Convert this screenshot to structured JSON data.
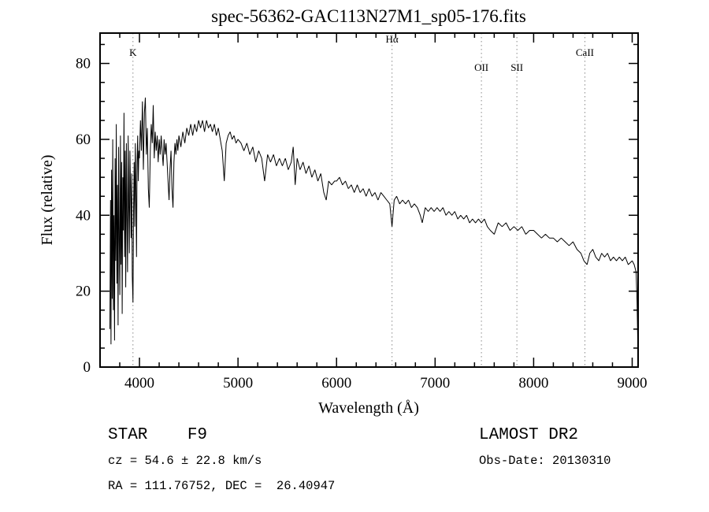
{
  "chart_data": {
    "type": "line",
    "title": "spec-56362-GAC113N27M1_sp05-176.fits",
    "xlabel": "Wavelength (Å)",
    "ylabel": "Flux (relative)",
    "xlim": [
      3600,
      9060
    ],
    "ylim": [
      0,
      88
    ],
    "x_ticks": [
      4000,
      5000,
      6000,
      7000,
      8000,
      9000
    ],
    "y_ticks": [
      0,
      20,
      40,
      60,
      80
    ],
    "x_minor_step": 200,
    "y_minor_step": 5,
    "grid": false,
    "legend": "none",
    "line_color": "#000000",
    "ref_line_color": "#8a8a8a",
    "spectral_lines": [
      {
        "label": "K",
        "wavelength": 3934,
        "label_y": 82
      },
      {
        "label": "Hα",
        "wavelength": 6563,
        "label_y": 85.5
      },
      {
        "label": "OII",
        "wavelength": 7470,
        "label_y": 78
      },
      {
        "label": "SII",
        "wavelength": 7830,
        "label_y": 78
      },
      {
        "label": "CaII",
        "wavelength": 8520,
        "label_y": 82
      }
    ],
    "points": [
      [
        3700,
        10
      ],
      [
        3706,
        44
      ],
      [
        3711,
        6
      ],
      [
        3717,
        52
      ],
      [
        3723,
        18
      ],
      [
        3729,
        60
      ],
      [
        3735,
        15
      ],
      [
        3741,
        40
      ],
      [
        3747,
        7
      ],
      [
        3753,
        55
      ],
      [
        3759,
        28
      ],
      [
        3765,
        64
      ],
      [
        3771,
        22
      ],
      [
        3777,
        48
      ],
      [
        3783,
        11
      ],
      [
        3789,
        58
      ],
      [
        3795,
        33
      ],
      [
        3801,
        19
      ],
      [
        3807,
        61
      ],
      [
        3813,
        27
      ],
      [
        3819,
        54
      ],
      [
        3825,
        14
      ],
      [
        3831,
        50
      ],
      [
        3837,
        36
      ],
      [
        3843,
        67
      ],
      [
        3849,
        29
      ],
      [
        3855,
        57
      ],
      [
        3861,
        21
      ],
      [
        3867,
        59
      ],
      [
        3873,
        39
      ],
      [
        3879,
        25
      ],
      [
        3885,
        61
      ],
      [
        3891,
        44
      ],
      [
        3897,
        30
      ],
      [
        3903,
        57
      ],
      [
        3909,
        47
      ],
      [
        3915,
        34
      ],
      [
        3921,
        51
      ],
      [
        3927,
        24
      ],
      [
        3934,
        17
      ],
      [
        3940,
        41
      ],
      [
        3946,
        54
      ],
      [
        3952,
        37
      ],
      [
        3958,
        59
      ],
      [
        3964,
        47
      ],
      [
        3970,
        29
      ],
      [
        3976,
        54
      ],
      [
        3982,
        61
      ],
      [
        3988,
        49
      ],
      [
        3994,
        57
      ],
      [
        4000,
        55
      ],
      [
        4010,
        65
      ],
      [
        4020,
        57
      ],
      [
        4030,
        70
      ],
      [
        4040,
        52
      ],
      [
        4050,
        67
      ],
      [
        4060,
        71
      ],
      [
        4070,
        56
      ],
      [
        4080,
        63
      ],
      [
        4090,
        47
      ],
      [
        4100,
        42
      ],
      [
        4110,
        57
      ],
      [
        4120,
        64
      ],
      [
        4130,
        59
      ],
      [
        4140,
        69
      ],
      [
        4150,
        55
      ],
      [
        4160,
        62
      ],
      [
        4170,
        57
      ],
      [
        4180,
        61
      ],
      [
        4190,
        54
      ],
      [
        4200,
        60
      ],
      [
        4210,
        56
      ],
      [
        4220,
        61
      ],
      [
        4230,
        57
      ],
      [
        4240,
        53
      ],
      [
        4250,
        60
      ],
      [
        4260,
        56
      ],
      [
        4270,
        59
      ],
      [
        4280,
        54
      ],
      [
        4290,
        49
      ],
      [
        4300,
        44
      ],
      [
        4310,
        52
      ],
      [
        4320,
        57
      ],
      [
        4330,
        47
      ],
      [
        4340,
        42
      ],
      [
        4350,
        54
      ],
      [
        4360,
        59
      ],
      [
        4370,
        56
      ],
      [
        4380,
        60
      ],
      [
        4390,
        57
      ],
      [
        4400,
        61
      ],
      [
        4420,
        58
      ],
      [
        4440,
        62
      ],
      [
        4460,
        59
      ],
      [
        4480,
        63
      ],
      [
        4500,
        61
      ],
      [
        4520,
        64
      ],
      [
        4540,
        61
      ],
      [
        4560,
        64
      ],
      [
        4580,
        62
      ],
      [
        4600,
        65
      ],
      [
        4620,
        63
      ],
      [
        4640,
        65
      ],
      [
        4660,
        62
      ],
      [
        4680,
        65
      ],
      [
        4700,
        63
      ],
      [
        4720,
        64
      ],
      [
        4740,
        62
      ],
      [
        4760,
        64
      ],
      [
        4780,
        61
      ],
      [
        4800,
        63
      ],
      [
        4820,
        60
      ],
      [
        4840,
        57
      ],
      [
        4861,
        49
      ],
      [
        4880,
        59
      ],
      [
        4900,
        61
      ],
      [
        4920,
        62
      ],
      [
        4940,
        60
      ],
      [
        4960,
        61
      ],
      [
        4980,
        59
      ],
      [
        5000,
        60
      ],
      [
        5030,
        59
      ],
      [
        5060,
        57
      ],
      [
        5090,
        59
      ],
      [
        5120,
        56
      ],
      [
        5150,
        58
      ],
      [
        5180,
        54
      ],
      [
        5210,
        57
      ],
      [
        5240,
        55
      ],
      [
        5270,
        49
      ],
      [
        5300,
        56
      ],
      [
        5330,
        54
      ],
      [
        5360,
        56
      ],
      [
        5390,
        53
      ],
      [
        5420,
        55
      ],
      [
        5450,
        53
      ],
      [
        5480,
        55
      ],
      [
        5510,
        52
      ],
      [
        5540,
        54
      ],
      [
        5560,
        58
      ],
      [
        5580,
        48
      ],
      [
        5600,
        55
      ],
      [
        5630,
        52
      ],
      [
        5660,
        54
      ],
      [
        5690,
        51
      ],
      [
        5720,
        53
      ],
      [
        5750,
        50
      ],
      [
        5780,
        52
      ],
      [
        5810,
        49
      ],
      [
        5840,
        51
      ],
      [
        5870,
        46
      ],
      [
        5895,
        44
      ],
      [
        5920,
        49
      ],
      [
        5950,
        48
      ],
      [
        5980,
        49
      ],
      [
        6000,
        49
      ],
      [
        6030,
        50
      ],
      [
        6060,
        48
      ],
      [
        6090,
        49
      ],
      [
        6120,
        47
      ],
      [
        6150,
        48
      ],
      [
        6180,
        46
      ],
      [
        6210,
        48
      ],
      [
        6240,
        46
      ],
      [
        6270,
        47
      ],
      [
        6300,
        45
      ],
      [
        6330,
        47
      ],
      [
        6360,
        45
      ],
      [
        6390,
        46
      ],
      [
        6420,
        44
      ],
      [
        6450,
        46
      ],
      [
        6480,
        45
      ],
      [
        6510,
        44
      ],
      [
        6540,
        43
      ],
      [
        6563,
        37
      ],
      [
        6585,
        44
      ],
      [
        6610,
        45
      ],
      [
        6640,
        43
      ],
      [
        6670,
        44
      ],
      [
        6700,
        43
      ],
      [
        6730,
        44
      ],
      [
        6760,
        42
      ],
      [
        6790,
        43
      ],
      [
        6820,
        42
      ],
      [
        6850,
        40
      ],
      [
        6870,
        38
      ],
      [
        6900,
        42
      ],
      [
        6930,
        41
      ],
      [
        6960,
        42
      ],
      [
        6990,
        41
      ],
      [
        7020,
        42
      ],
      [
        7050,
        41
      ],
      [
        7080,
        42
      ],
      [
        7110,
        40
      ],
      [
        7140,
        41
      ],
      [
        7170,
        40
      ],
      [
        7200,
        41
      ],
      [
        7230,
        39
      ],
      [
        7260,
        40
      ],
      [
        7290,
        39
      ],
      [
        7320,
        40
      ],
      [
        7350,
        38
      ],
      [
        7380,
        39
      ],
      [
        7410,
        38
      ],
      [
        7440,
        39
      ],
      [
        7470,
        38
      ],
      [
        7500,
        39
      ],
      [
        7530,
        37
      ],
      [
        7560,
        36
      ],
      [
        7600,
        35
      ],
      [
        7640,
        38
      ],
      [
        7680,
        37
      ],
      [
        7720,
        38
      ],
      [
        7760,
        36
      ],
      [
        7800,
        37
      ],
      [
        7840,
        36
      ],
      [
        7880,
        37
      ],
      [
        7920,
        35
      ],
      [
        7960,
        36
      ],
      [
        8000,
        36
      ],
      [
        8040,
        35
      ],
      [
        8080,
        34
      ],
      [
        8120,
        35
      ],
      [
        8160,
        34
      ],
      [
        8200,
        34
      ],
      [
        8240,
        33
      ],
      [
        8280,
        34
      ],
      [
        8320,
        33
      ],
      [
        8360,
        32
      ],
      [
        8400,
        33
      ],
      [
        8440,
        31
      ],
      [
        8480,
        30
      ],
      [
        8510,
        28
      ],
      [
        8542,
        27
      ],
      [
        8570,
        30
      ],
      [
        8600,
        31
      ],
      [
        8630,
        29
      ],
      [
        8662,
        28
      ],
      [
        8690,
        30
      ],
      [
        8720,
        29
      ],
      [
        8750,
        30
      ],
      [
        8780,
        28
      ],
      [
        8810,
        29
      ],
      [
        8840,
        28
      ],
      [
        8870,
        29
      ],
      [
        8900,
        28
      ],
      [
        8930,
        29
      ],
      [
        8960,
        27
      ],
      [
        9000,
        28
      ],
      [
        9020,
        27
      ],
      [
        9040,
        25
      ],
      [
        9050,
        17
      ],
      [
        9058,
        5
      ]
    ]
  },
  "footer": {
    "class_label": "STAR    F9",
    "survey": "LAMOST DR2",
    "cz": "cz = 54.6 ± 22.8 km/s",
    "obs_date": "Obs-Date: 20130310",
    "coords": "RA = 111.76752, DEC =  26.40947"
  }
}
